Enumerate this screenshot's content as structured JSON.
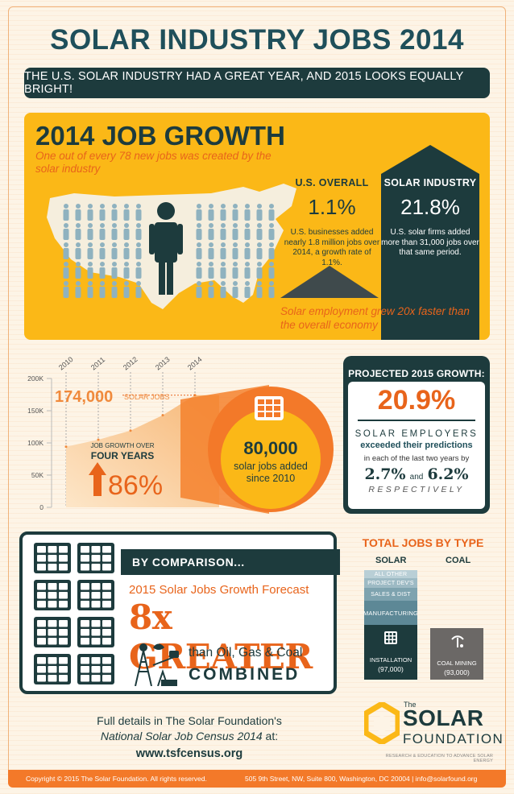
{
  "title": "SOLAR INDUSTRY JOBS 2014",
  "banner": "THE U.S. SOLAR INDUSTRY HAD A GREAT YEAR, AND 2015 LOOKS EQUALLY BRIGHT!",
  "growth": {
    "title": "2014 JOB GROWTH",
    "subtitle": "One out of every 78 new jobs was created by the solar industry",
    "us": {
      "label": "U.S. OVERALL",
      "value": "1.1%",
      "desc": "U.S. businesses added nearly 1.8 million jobs over 2014, a growth rate of 1.1%."
    },
    "solar": {
      "label": "SOLAR INDUSTRY",
      "value": "21.8%",
      "desc": "U.S. solar firms added more than 31,000 jobs over that same period."
    },
    "footnote": "Solar employment grew 20x faster than the overall economy"
  },
  "chart_data": {
    "type": "area",
    "x": [
      "2010",
      "2011",
      "2012",
      "2013",
      "2014"
    ],
    "y": [
      94000,
      105000,
      119000,
      143000,
      174000
    ],
    "ylim": [
      0,
      200000
    ],
    "yticks": [
      "0",
      "50K",
      "100K",
      "150K",
      "200K"
    ],
    "callout_value": "174,000",
    "callout_label": "SOLAR JOBS",
    "growth_label": "JOB GROWTH OVER",
    "growth_label2": "FOUR YEARS",
    "growth_value": "86%"
  },
  "added": {
    "value": "80,000",
    "label": "solar jobs added since 2010"
  },
  "projected": {
    "title": "PROJECTED 2015 GROWTH:",
    "value": "20.9%",
    "employers": "SOLAR EMPLOYERS",
    "exceeded": "exceeded their predictions",
    "each": "in each of the last two years by",
    "v1": "2.7%",
    "and": "and",
    "v2": "6.2%",
    "resp": "RESPECTIVELY"
  },
  "comparison": {
    "header": "BY COMPARISON...",
    "forecast": "2015 Solar Jobs Growth Forecast",
    "greater": "8x GREATER",
    "than": "than Oil, Gas & Coal",
    "combined": "COMBINED"
  },
  "total_jobs": {
    "title": "TOTAL JOBS BY TYPE",
    "solar_label": "SOLAR",
    "coal_label": "COAL",
    "segments": [
      "ALL OTHER",
      "PROJECT DEV'S",
      "SALES & DIST",
      "MANUFACTURING"
    ],
    "installation": "INSTALLATION",
    "installation_value": "(97,000)",
    "coal_mining": "COAL MINING",
    "coal_value": "(93,000)"
  },
  "footer": {
    "full_details": "Full details in The Solar Foundation's",
    "census": "National Solar Job Census 2014",
    "at": " at:",
    "url": "www.tsfcensus.org",
    "copyright": "Copyright © 2015 The Solar Foundation. All rights reserved.",
    "address": "505 9th Street, NW, Suite 800, Washington, DC  20004  |  info@solarfound.org"
  },
  "logo": {
    "the": "The",
    "solar": "SOLAR",
    "foundation": "FOUNDATION",
    "tagline": "RESEARCH & EDUCATION TO ADVANCE SOLAR ENERGY"
  },
  "colors": {
    "dark": "#1d3b3d",
    "orange": "#e8641b",
    "yellow": "#fbb817",
    "cream": "#fdf4e6"
  }
}
